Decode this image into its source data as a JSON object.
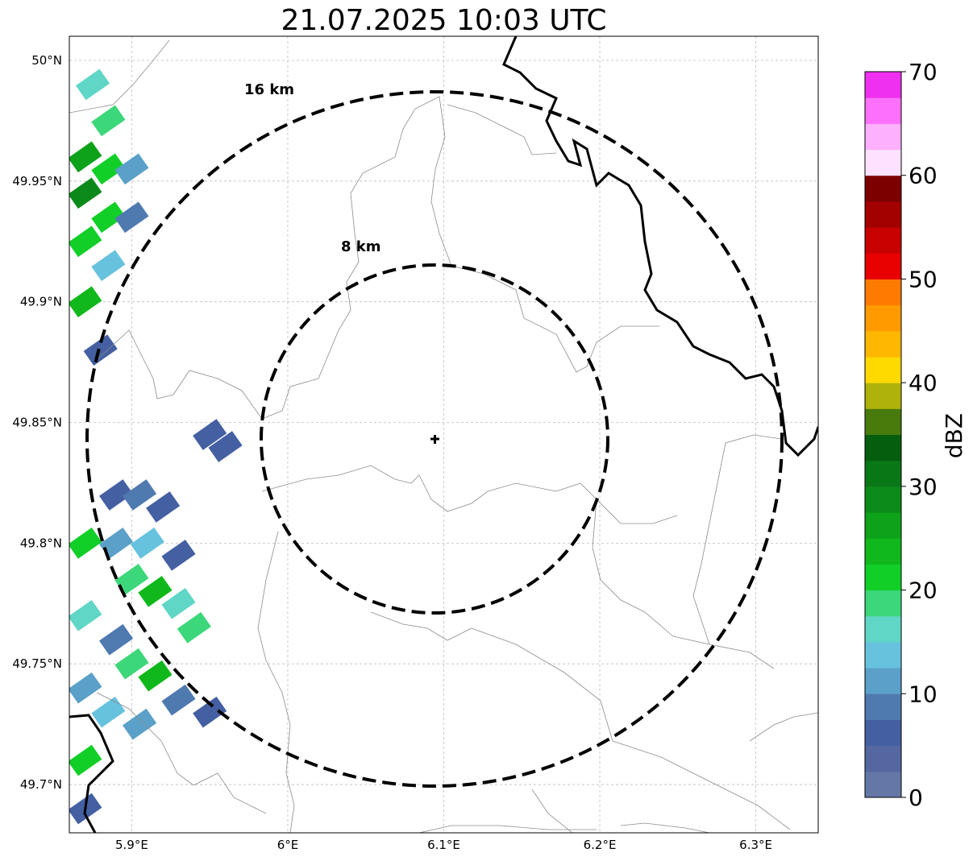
{
  "title": "21.07.2025 10:03 UTC",
  "axes": {
    "x_ticks": [
      {
        "value": 5.9,
        "label": "5.9°E"
      },
      {
        "value": 6.0,
        "label": "6°E"
      },
      {
        "value": 6.1,
        "label": "6.1°E"
      },
      {
        "value": 6.2,
        "label": "6.2°E"
      },
      {
        "value": 6.3,
        "label": "6.3°E"
      }
    ],
    "y_ticks": [
      {
        "value": 50.0,
        "label": "50°N"
      },
      {
        "value": 49.95,
        "label": "49.95°N"
      },
      {
        "value": 49.9,
        "label": "49.9°N"
      },
      {
        "value": 49.85,
        "label": "49.85°N"
      },
      {
        "value": 49.8,
        "label": "49.8°N"
      },
      {
        "value": 49.75,
        "label": "49.75°N"
      },
      {
        "value": 49.7,
        "label": "49.7°N"
      }
    ],
    "lon_range": [
      5.86,
      6.34
    ],
    "lat_range": [
      49.68,
      50.01
    ],
    "gridlines": true
  },
  "radar": {
    "center": {
      "lon": 6.095,
      "lat": 49.843
    },
    "marker": "plus",
    "range_rings": [
      {
        "radius_km": 8,
        "label": "8 km"
      },
      {
        "radius_km": 16,
        "label": "16 km"
      }
    ]
  },
  "colorbar": {
    "label": "dBZ",
    "min": 0,
    "max": 70,
    "tick_values": [
      0,
      10,
      20,
      30,
      40,
      50,
      60,
      70
    ],
    "tick_labels": [
      "0",
      "10",
      "20",
      "30",
      "40",
      "50",
      "60",
      "70"
    ],
    "colors": [
      "#6577a7",
      "#5467a0",
      "#4460a2",
      "#4f7ab0",
      "#5aa0c8",
      "#67c2dd",
      "#60d6c6",
      "#3cd77a",
      "#11cf27",
      "#10b81b",
      "#0ea11a",
      "#0b8a19",
      "#0a7717",
      "#045e0e",
      "#487a0c",
      "#afb20b",
      "#ffd900",
      "#ffb700",
      "#ff9b00",
      "#ff7b00",
      "#e80000",
      "#c80000",
      "#a30000",
      "#7c0000",
      "#fde1fe",
      "#fdb0fd",
      "#fd70fd",
      "#f030f0"
    ]
  },
  "precip_cells": [
    {
      "lon": 5.875,
      "lat": 49.99,
      "dbz": 15
    },
    {
      "lon": 5.885,
      "lat": 49.975,
      "dbz": 18
    },
    {
      "lon": 5.87,
      "lat": 49.96,
      "dbz": 25
    },
    {
      "lon": 5.885,
      "lat": 49.955,
      "dbz": 22
    },
    {
      "lon": 5.9,
      "lat": 49.955,
      "dbz": 12
    },
    {
      "lon": 5.87,
      "lat": 49.945,
      "dbz": 28
    },
    {
      "lon": 5.885,
      "lat": 49.935,
      "dbz": 20
    },
    {
      "lon": 5.9,
      "lat": 49.935,
      "dbz": 8
    },
    {
      "lon": 5.87,
      "lat": 49.925,
      "dbz": 22
    },
    {
      "lon": 5.885,
      "lat": 49.915,
      "dbz": 14
    },
    {
      "lon": 5.87,
      "lat": 49.9,
      "dbz": 24
    },
    {
      "lon": 5.88,
      "lat": 49.88,
      "dbz": 6
    },
    {
      "lon": 5.95,
      "lat": 49.845,
      "dbz": 5
    },
    {
      "lon": 5.96,
      "lat": 49.84,
      "dbz": 7
    },
    {
      "lon": 5.89,
      "lat": 49.82,
      "dbz": 6
    },
    {
      "lon": 5.905,
      "lat": 49.82,
      "dbz": 8
    },
    {
      "lon": 5.92,
      "lat": 49.815,
      "dbz": 5
    },
    {
      "lon": 5.87,
      "lat": 49.8,
      "dbz": 22
    },
    {
      "lon": 5.89,
      "lat": 49.8,
      "dbz": 12
    },
    {
      "lon": 5.91,
      "lat": 49.8,
      "dbz": 14
    },
    {
      "lon": 5.93,
      "lat": 49.795,
      "dbz": 6
    },
    {
      "lon": 5.9,
      "lat": 49.785,
      "dbz": 18
    },
    {
      "lon": 5.915,
      "lat": 49.78,
      "dbz": 24
    },
    {
      "lon": 5.93,
      "lat": 49.775,
      "dbz": 15
    },
    {
      "lon": 5.87,
      "lat": 49.77,
      "dbz": 16
    },
    {
      "lon": 5.94,
      "lat": 49.765,
      "dbz": 18
    },
    {
      "lon": 5.89,
      "lat": 49.76,
      "dbz": 9
    },
    {
      "lon": 5.9,
      "lat": 49.75,
      "dbz": 19
    },
    {
      "lon": 5.915,
      "lat": 49.745,
      "dbz": 23
    },
    {
      "lon": 5.87,
      "lat": 49.74,
      "dbz": 12
    },
    {
      "lon": 5.93,
      "lat": 49.735,
      "dbz": 8
    },
    {
      "lon": 5.95,
      "lat": 49.73,
      "dbz": 5
    },
    {
      "lon": 5.885,
      "lat": 49.73,
      "dbz": 14
    },
    {
      "lon": 5.905,
      "lat": 49.725,
      "dbz": 10
    },
    {
      "lon": 5.87,
      "lat": 49.71,
      "dbz": 20
    },
    {
      "lon": 5.87,
      "lat": 49.69,
      "dbz": 7
    }
  ]
}
